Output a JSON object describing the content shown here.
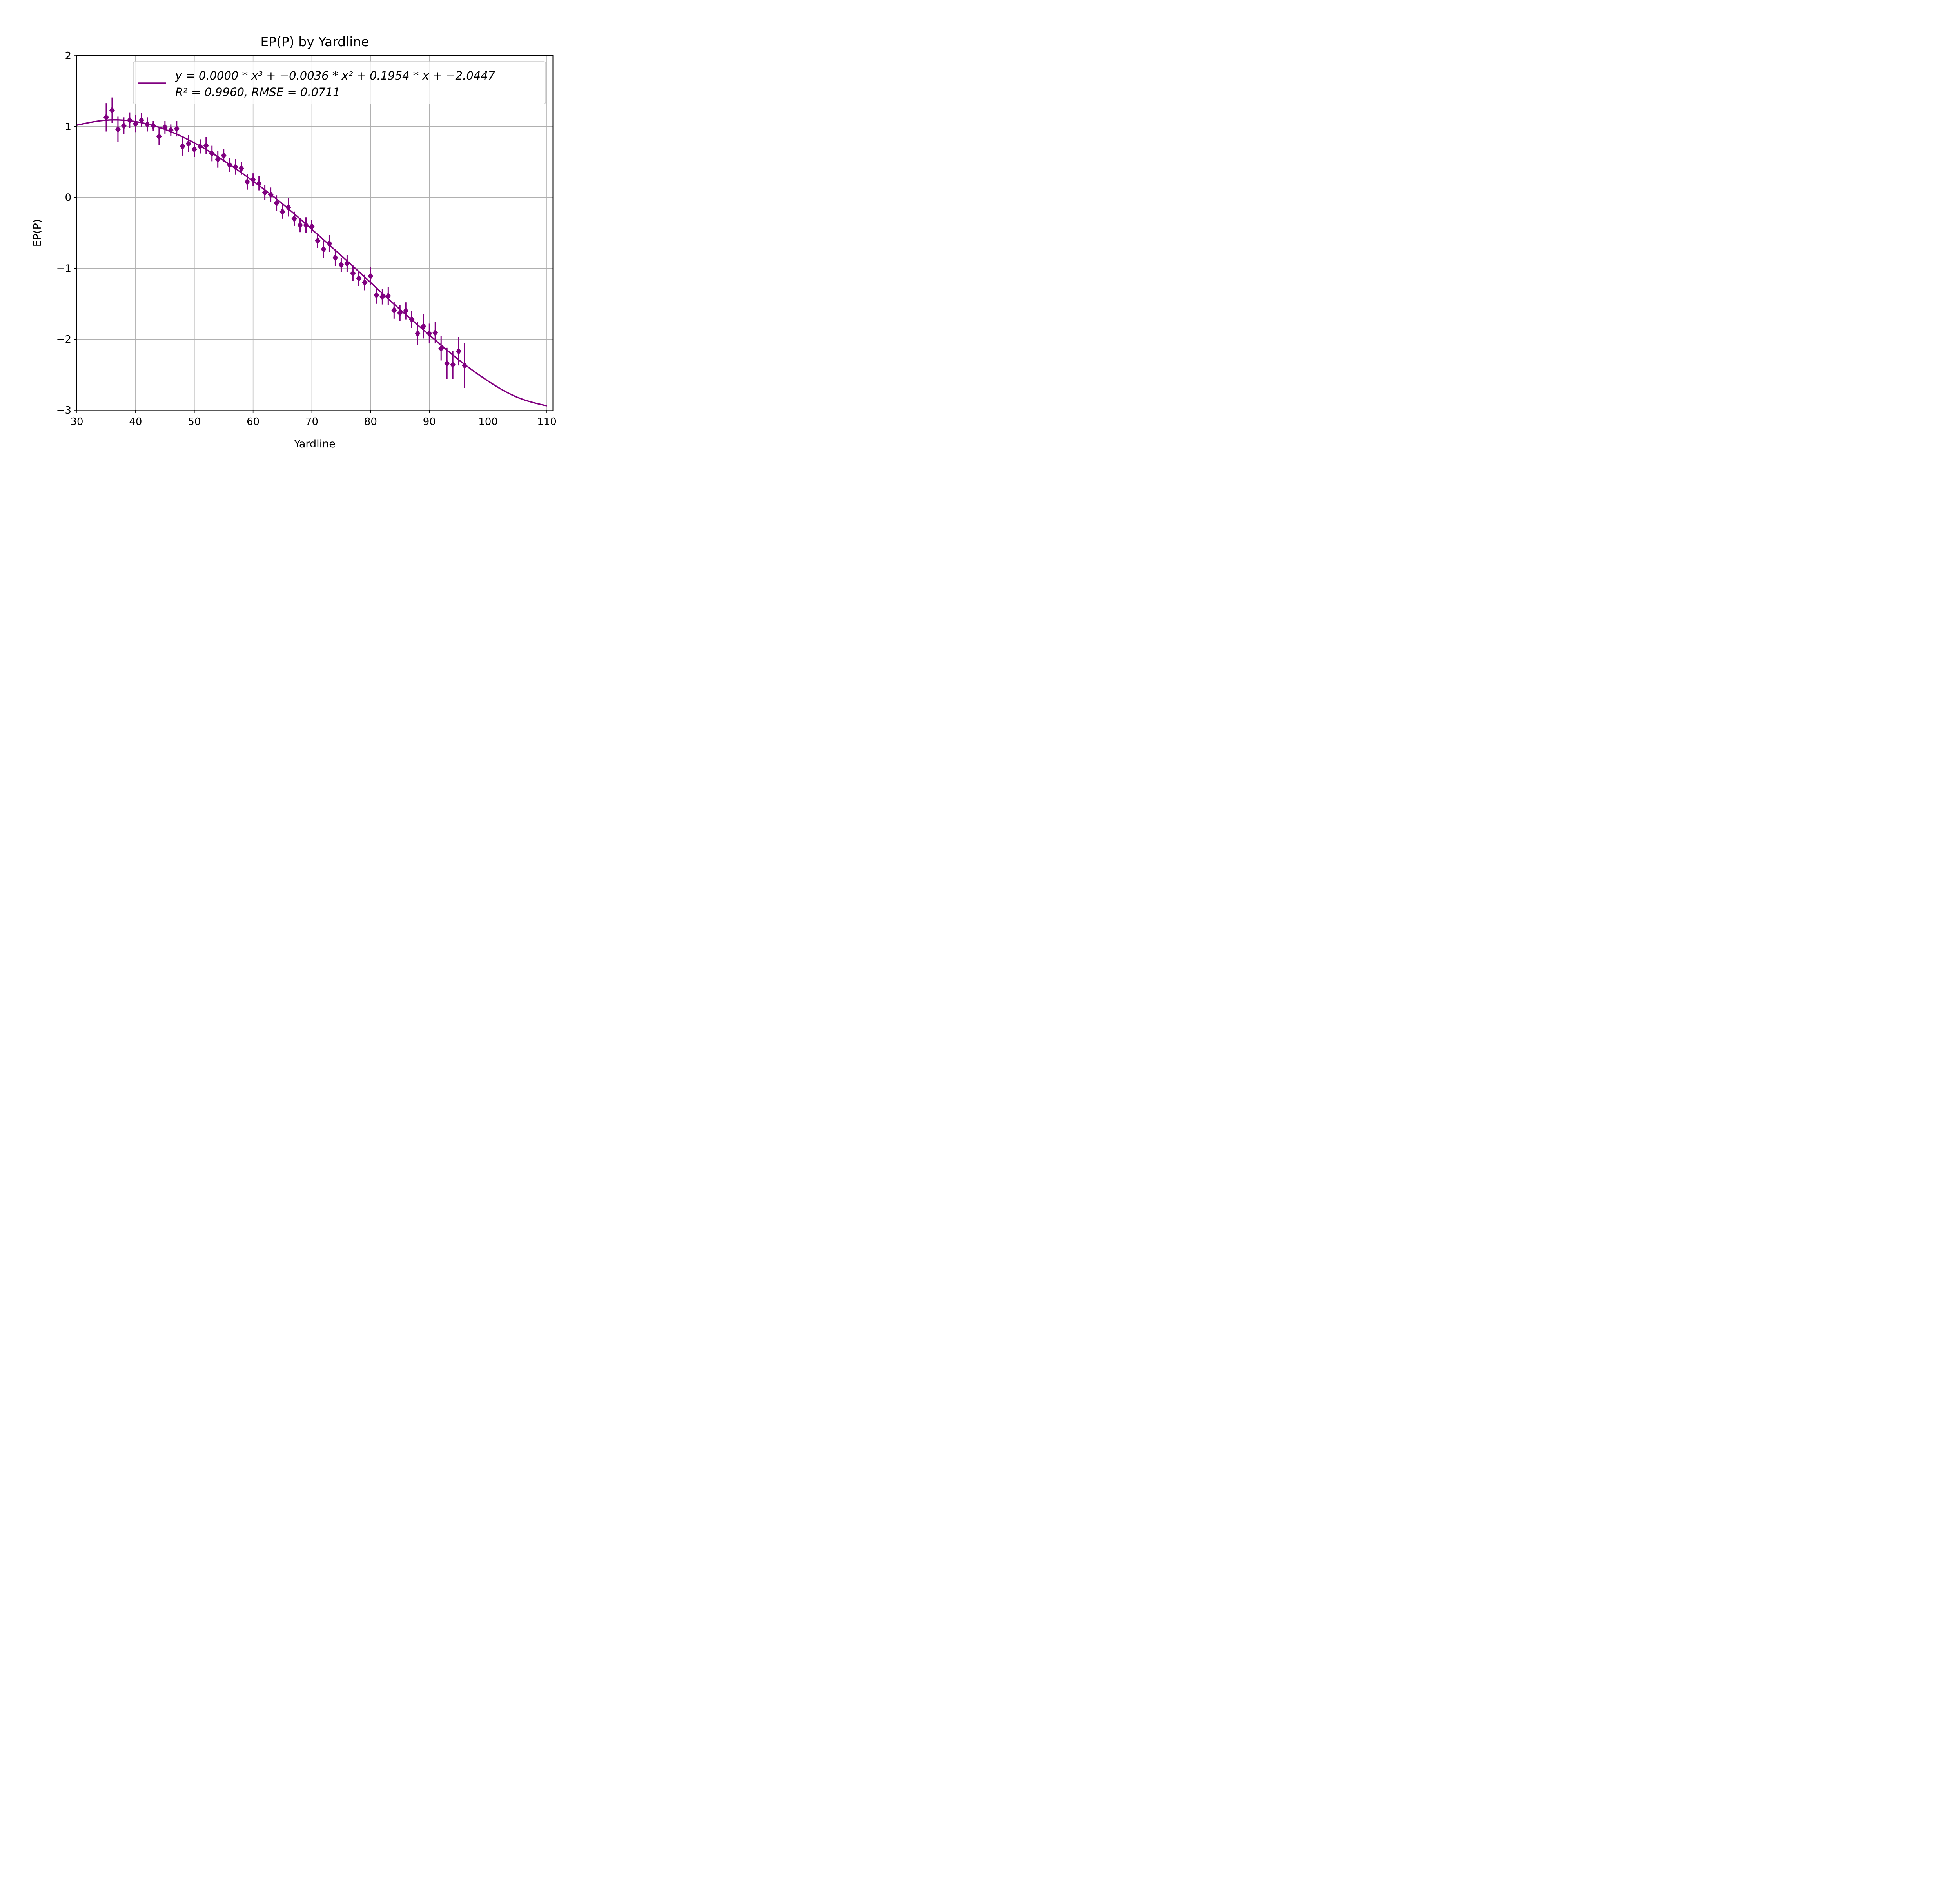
{
  "chart_data": {
    "type": "scatter",
    "title": "EP(P) by Yardline",
    "xlabel": "Yardline",
    "ylabel": "EP(P)",
    "xlim": [
      30,
      111
    ],
    "ylim": [
      -3,
      2
    ],
    "xticks": [
      30,
      40,
      50,
      60,
      70,
      80,
      90,
      100,
      110
    ],
    "yticks": [
      -3,
      -2,
      -1,
      0,
      1,
      2
    ],
    "grid": true,
    "legend_position": "top-right",
    "legend": {
      "line1": "y = 0.0000 * x³ + −0.0036 * x² + 0.1954 * x + −2.0447",
      "line2": "R² = 0.9960, RMSE = 0.0711"
    },
    "color": "#800080",
    "fit": {
      "name": "y = 0.0000 * x^3 + -0.0036 * x^2 + 0.1954 * x + -2.0447",
      "x_range": [
        30,
        110
      ],
      "x": [
        30,
        35,
        40,
        45,
        50,
        55,
        60,
        65,
        70,
        75,
        80,
        85,
        90,
        95,
        100,
        105,
        110
      ],
      "y": [
        1.02,
        1.09,
        1.07,
        0.96,
        0.77,
        0.52,
        0.23,
        -0.09,
        -0.45,
        -0.82,
        -1.2,
        -1.58,
        -1.94,
        -2.29,
        -2.59,
        -2.82,
        -2.94
      ]
    },
    "series": [
      {
        "x": [
          35,
          36,
          37,
          38,
          39,
          40,
          41,
          42,
          43,
          44,
          45,
          46,
          47,
          48,
          49,
          50,
          51,
          52,
          53,
          54,
          55,
          56,
          57,
          58,
          59,
          60,
          61,
          62,
          63,
          64,
          65,
          66,
          67,
          68,
          69,
          70,
          71,
          72,
          73,
          74,
          75,
          76,
          77,
          78,
          79,
          80,
          81,
          82,
          83,
          84,
          85,
          86,
          87,
          88,
          89,
          90,
          91,
          92,
          93,
          94,
          95,
          96
        ],
        "y": [
          1.13,
          1.23,
          0.96,
          1.01,
          1.09,
          1.04,
          1.09,
          1.03,
          1.01,
          0.86,
          0.99,
          0.95,
          0.97,
          0.72,
          0.76,
          0.68,
          0.72,
          0.73,
          0.62,
          0.54,
          0.59,
          0.46,
          0.43,
          0.41,
          0.22,
          0.25,
          0.2,
          0.07,
          0.04,
          -0.08,
          -0.2,
          -0.14,
          -0.3,
          -0.39,
          -0.39,
          -0.41,
          -0.61,
          -0.73,
          -0.65,
          -0.85,
          -0.95,
          -0.93,
          -1.07,
          -1.14,
          -1.2,
          -1.11,
          -1.38,
          -1.4,
          -1.39,
          -1.59,
          -1.63,
          -1.6,
          -1.72,
          -1.92,
          -1.82,
          -1.92,
          -1.91,
          -2.13,
          -2.34,
          -2.36,
          -2.17,
          -2.37
        ],
        "yerr": [
          0.2,
          0.18,
          0.18,
          0.12,
          0.11,
          0.12,
          0.1,
          0.1,
          0.07,
          0.12,
          0.09,
          0.08,
          0.11,
          0.13,
          0.12,
          0.11,
          0.1,
          0.12,
          0.11,
          0.12,
          0.09,
          0.1,
          0.11,
          0.09,
          0.11,
          0.09,
          0.1,
          0.1,
          0.1,
          0.11,
          0.1,
          0.13,
          0.1,
          0.1,
          0.11,
          0.09,
          0.1,
          0.12,
          0.12,
          0.12,
          0.1,
          0.12,
          0.11,
          0.11,
          0.11,
          0.13,
          0.12,
          0.11,
          0.13,
          0.12,
          0.11,
          0.12,
          0.12,
          0.16,
          0.17,
          0.14,
          0.15,
          0.17,
          0.22,
          0.2,
          0.2,
          0.32
        ]
      }
    ]
  }
}
